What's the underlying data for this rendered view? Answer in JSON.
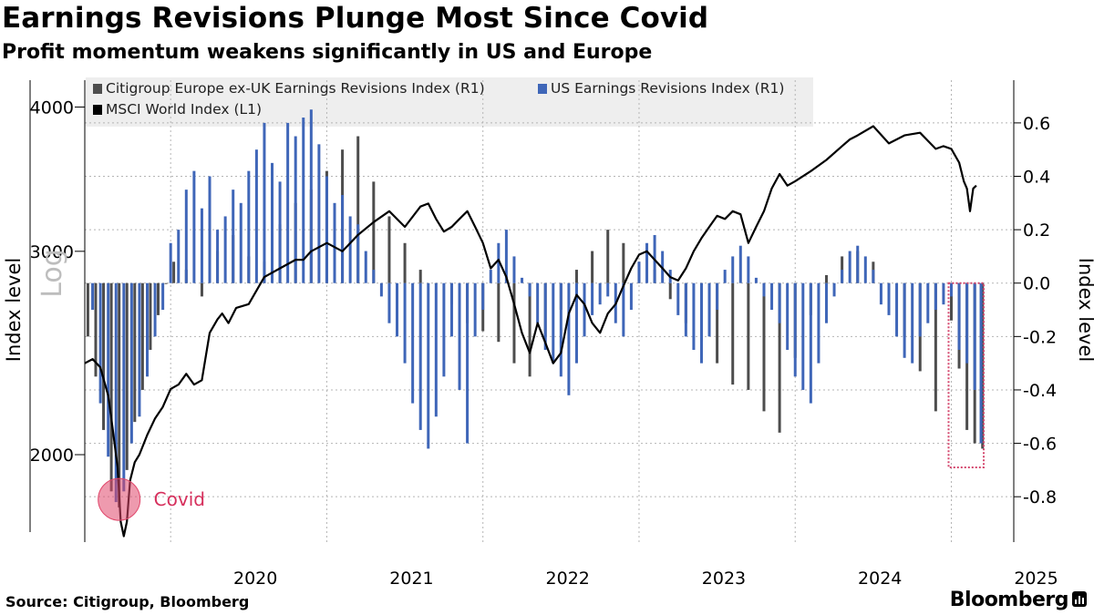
{
  "header": {
    "title": "Earnings Revisions Plunge Most Since Covid",
    "subtitle": "Profit momentum weakens significantly in US and Europe"
  },
  "footer": {
    "source": "Source: Citigroup, Bloomberg",
    "brand": "Bloomberg"
  },
  "colors": {
    "europe": "#4d4d4d",
    "us": "#3f66b8",
    "msci": "#000000",
    "highlight": "#e0476b",
    "grid": "#b5b5b5"
  },
  "chart_data": {
    "type": "bar+line",
    "title": "Earnings Revisions Plunge Most Since Covid",
    "subtitle": "Profit momentum weakens significantly in US and Europe",
    "ylabel_left": "Index level",
    "ylabel_left_scale": "Log",
    "ylabel_right": "Index level",
    "yaxis_left": {
      "scale": "log",
      "range": [
        1680,
        4220
      ],
      "ticks": [
        "4000",
        "3000",
        "2000"
      ]
    },
    "yaxis_right": {
      "range": [
        -0.97,
        0.76
      ],
      "ticks": [
        "0.6",
        "0.4",
        "0.2",
        "0.0",
        "-0.2",
        "-0.4",
        "-0.6",
        "-0.8"
      ]
    },
    "x_range": [
      2019.45,
      2025.4
    ],
    "x_ticks": [
      "2020",
      "2021",
      "2022",
      "2023",
      "2024",
      "2025"
    ],
    "legend": [
      {
        "label": "Citigroup Europe ex-UK Earnings Revisions Index (R1)",
        "color": "#4d4d4d"
      },
      {
        "label": "US Earnings Revisions Index (R1)",
        "color": "#3f66b8"
      },
      {
        "label": "MSCI World Index  (L1)",
        "color": "#000000"
      }
    ],
    "annotation": {
      "label": "Covid",
      "x": 2019.67,
      "y": -0.81
    },
    "highlight_box": {
      "x_range": [
        2025.0,
        2025.19
      ],
      "y_range": [
        -0.69,
        0.0
      ]
    },
    "series": [
      {
        "name": "Citigroup Europe ex-UK Earnings Revisions Index (R1)",
        "axis": "right",
        "color": "#4d4d4d",
        "x": [
          2019.47,
          2019.52,
          2019.57,
          2019.62,
          2019.67,
          2019.72,
          2019.77,
          2019.82,
          2019.87,
          2019.92,
          2019.97,
          2020.02,
          2020.1,
          2020.2,
          2020.3,
          2020.4,
          2020.5,
          2020.6,
          2020.7,
          2020.8,
          2020.9,
          2021.0,
          2021.1,
          2021.2,
          2021.3,
          2021.4,
          2021.5,
          2021.6,
          2021.7,
          2021.8,
          2021.9,
          2022.0,
          2022.1,
          2022.2,
          2022.3,
          2022.4,
          2022.5,
          2022.6,
          2022.7,
          2022.8,
          2022.9,
          2023.0,
          2023.1,
          2023.2,
          2023.3,
          2023.4,
          2023.5,
          2023.6,
          2023.7,
          2023.8,
          2023.9,
          2024.0,
          2024.1,
          2024.2,
          2024.3,
          2024.4,
          2024.5,
          2024.6,
          2024.7,
          2024.8,
          2024.9,
          2025.0,
          2025.05,
          2025.1,
          2025.15,
          2025.2
        ],
        "values": [
          -0.2,
          -0.35,
          -0.55,
          -0.78,
          -0.84,
          -0.7,
          -0.52,
          -0.4,
          -0.25,
          -0.12,
          0.0,
          0.08,
          0.05,
          -0.05,
          0.12,
          0.18,
          0.1,
          0.08,
          0.22,
          0.3,
          0.35,
          0.42,
          0.5,
          0.55,
          0.38,
          0.25,
          0.15,
          0.05,
          0.0,
          -0.08,
          -0.15,
          -0.18,
          -0.22,
          -0.3,
          -0.35,
          -0.2,
          -0.1,
          0.05,
          0.12,
          0.2,
          0.15,
          0.08,
          0.05,
          -0.06,
          -0.15,
          -0.22,
          -0.3,
          -0.38,
          -0.4,
          -0.48,
          -0.56,
          -0.28,
          -0.12,
          0.03,
          0.1,
          0.12,
          0.08,
          -0.1,
          -0.2,
          -0.33,
          -0.48,
          -0.14,
          -0.32,
          -0.55,
          -0.6,
          -0.62
        ]
      },
      {
        "name": "US Earnings Revisions Index (R1)",
        "axis": "right",
        "color": "#3f66b8",
        "x": [
          2019.5,
          2019.55,
          2019.6,
          2019.65,
          2019.7,
          2019.75,
          2019.8,
          2019.85,
          2019.9,
          2019.95,
          2020.0,
          2020.05,
          2020.1,
          2020.15,
          2020.2,
          2020.25,
          2020.3,
          2020.35,
          2020.4,
          2020.45,
          2020.5,
          2020.55,
          2020.6,
          2020.65,
          2020.7,
          2020.75,
          2020.8,
          2020.85,
          2020.9,
          2020.95,
          2021.0,
          2021.05,
          2021.1,
          2021.15,
          2021.2,
          2021.25,
          2021.3,
          2021.35,
          2021.4,
          2021.45,
          2021.5,
          2021.55,
          2021.6,
          2021.65,
          2021.7,
          2021.75,
          2021.8,
          2021.85,
          2021.9,
          2021.95,
          2022.0,
          2022.05,
          2022.1,
          2022.15,
          2022.2,
          2022.25,
          2022.3,
          2022.35,
          2022.4,
          2022.45,
          2022.5,
          2022.55,
          2022.6,
          2022.65,
          2022.7,
          2022.75,
          2022.8,
          2022.85,
          2022.9,
          2022.95,
          2023.0,
          2023.05,
          2023.1,
          2023.15,
          2023.2,
          2023.25,
          2023.3,
          2023.35,
          2023.4,
          2023.45,
          2023.5,
          2023.55,
          2023.6,
          2023.65,
          2023.7,
          2023.75,
          2023.8,
          2023.85,
          2023.9,
          2023.95,
          2024.0,
          2024.05,
          2024.1,
          2024.15,
          2024.2,
          2024.25,
          2024.3,
          2024.35,
          2024.4,
          2024.45,
          2024.5,
          2024.55,
          2024.6,
          2024.65,
          2024.7,
          2024.75,
          2024.8,
          2024.85,
          2024.9,
          2024.95,
          2025.0,
          2025.05,
          2025.1,
          2025.15,
          2025.19
        ],
        "values": [
          -0.1,
          -0.45,
          -0.65,
          -0.82,
          -0.78,
          -0.6,
          -0.5,
          -0.35,
          -0.2,
          -0.1,
          0.15,
          0.2,
          0.35,
          0.42,
          0.28,
          0.4,
          0.2,
          0.25,
          0.35,
          0.3,
          0.42,
          0.5,
          0.6,
          0.45,
          0.38,
          0.6,
          0.55,
          0.62,
          0.65,
          0.52,
          0.4,
          0.3,
          0.33,
          0.25,
          0.22,
          0.12,
          0.05,
          -0.05,
          -0.15,
          -0.2,
          -0.3,
          -0.45,
          -0.55,
          -0.62,
          -0.5,
          -0.35,
          -0.2,
          -0.4,
          -0.6,
          -0.2,
          -0.1,
          0.05,
          0.15,
          0.2,
          0.1,
          0.02,
          -0.05,
          -0.15,
          -0.25,
          -0.3,
          -0.35,
          -0.42,
          -0.3,
          -0.2,
          -0.12,
          -0.08,
          -0.05,
          -0.15,
          -0.2,
          -0.1,
          0.08,
          0.15,
          0.18,
          0.12,
          0.05,
          -0.12,
          -0.2,
          -0.25,
          -0.3,
          -0.2,
          -0.1,
          0.05,
          0.1,
          0.14,
          0.1,
          0.02,
          -0.05,
          -0.1,
          -0.15,
          -0.25,
          -0.35,
          -0.4,
          -0.45,
          -0.3,
          -0.15,
          -0.05,
          0.05,
          0.12,
          0.14,
          0.1,
          0.05,
          -0.08,
          -0.12,
          -0.2,
          -0.28,
          -0.3,
          -0.2,
          -0.15,
          -0.1,
          -0.08,
          -0.05,
          -0.25,
          -0.3,
          -0.4,
          -0.6
        ]
      },
      {
        "name": "MSCI World Index  (L1)",
        "axis": "left",
        "color": "#000000",
        "x": [
          2019.45,
          2019.5,
          2019.55,
          2019.6,
          2019.63,
          2019.66,
          2019.68,
          2019.7,
          2019.72,
          2019.74,
          2019.77,
          2019.8,
          2019.85,
          2019.9,
          2019.95,
          2020.0,
          2020.05,
          2020.1,
          2020.15,
          2020.2,
          2020.25,
          2020.3,
          2020.33,
          2020.37,
          2020.42,
          2020.5,
          2020.6,
          2020.7,
          2020.8,
          2020.85,
          2020.9,
          2021.0,
          2021.1,
          2021.2,
          2021.3,
          2021.4,
          2021.5,
          2021.6,
          2021.65,
          2021.7,
          2021.75,
          2021.8,
          2021.85,
          2021.9,
          2021.95,
          2022.0,
          2022.05,
          2022.1,
          2022.15,
          2022.2,
          2022.25,
          2022.3,
          2022.35,
          2022.4,
          2022.45,
          2022.5,
          2022.55,
          2022.6,
          2022.65,
          2022.7,
          2022.75,
          2022.8,
          2022.85,
          2022.9,
          2022.95,
          2023.0,
          2023.05,
          2023.1,
          2023.15,
          2023.2,
          2023.25,
          2023.3,
          2023.35,
          2023.4,
          2023.45,
          2023.5,
          2023.55,
          2023.6,
          2023.65,
          2023.7,
          2023.75,
          2023.8,
          2023.85,
          2023.9,
          2023.95,
          2024.0,
          2024.1,
          2024.2,
          2024.3,
          2024.35,
          2024.4,
          2024.5,
          2024.6,
          2024.7,
          2024.8,
          2024.9,
          2024.95,
          2025.0,
          2025.05,
          2025.08,
          2025.1,
          2025.12,
          2025.14,
          2025.16
        ],
        "values": [
          2400,
          2420,
          2380,
          2250,
          2100,
          1950,
          1750,
          1700,
          1750,
          1900,
          1970,
          2000,
          2080,
          2150,
          2200,
          2280,
          2300,
          2350,
          2300,
          2320,
          2550,
          2620,
          2650,
          2600,
          2680,
          2700,
          2850,
          2900,
          2950,
          2950,
          3000,
          3050,
          3000,
          3100,
          3180,
          3250,
          3150,
          3280,
          3300,
          3200,
          3120,
          3150,
          3200,
          3250,
          3150,
          3050,
          2900,
          2950,
          2850,
          2700,
          2550,
          2450,
          2600,
          2500,
          2400,
          2450,
          2650,
          2750,
          2700,
          2600,
          2550,
          2650,
          2700,
          2800,
          2900,
          2980,
          3000,
          2950,
          2900,
          2850,
          2830,
          2900,
          3000,
          3080,
          3150,
          3220,
          3200,
          3250,
          3230,
          3050,
          3150,
          3250,
          3400,
          3500,
          3420,
          3450,
          3520,
          3600,
          3700,
          3750,
          3780,
          3850,
          3720,
          3780,
          3800,
          3680,
          3700,
          3680,
          3580,
          3450,
          3400,
          3250,
          3400,
          3420
        ]
      }
    ]
  }
}
